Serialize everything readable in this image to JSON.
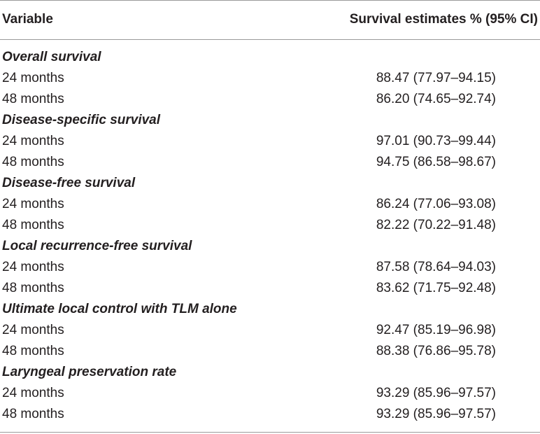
{
  "table": {
    "header": {
      "variable": "Variable",
      "estimate": "Survival estimates % (95% CI)"
    },
    "sections": [
      {
        "title": "Overall survival",
        "rows": [
          {
            "label": "24 months",
            "value": "88.47 (77.97–94.15)"
          },
          {
            "label": "48 months",
            "value": "86.20 (74.65–92.74)"
          }
        ]
      },
      {
        "title": "Disease-specific survival",
        "rows": [
          {
            "label": "24 months",
            "value": "97.01 (90.73–99.44)"
          },
          {
            "label": "48 months",
            "value": "94.75 (86.58–98.67)"
          }
        ]
      },
      {
        "title": "Disease-free survival",
        "rows": [
          {
            "label": "24 months",
            "value": "86.24 (77.06–93.08)"
          },
          {
            "label": "48 months",
            "value": "82.22 (70.22–91.48)"
          }
        ]
      },
      {
        "title": "Local recurrence-free survival",
        "rows": [
          {
            "label": "24 months",
            "value": "87.58 (78.64–94.03)"
          },
          {
            "label": "48 months",
            "value": "83.62 (71.75–92.48)"
          }
        ]
      },
      {
        "title": "Ultimate local control with TLM alone",
        "rows": [
          {
            "label": "24 months",
            "value": "92.47 (85.19–96.98)"
          },
          {
            "label": "48 months",
            "value": "88.38 (76.86–95.78)"
          }
        ]
      },
      {
        "title": "Laryngeal preservation rate",
        "rows": [
          {
            "label": "24 months",
            "value": "93.29 (85.96–97.57)"
          },
          {
            "label": "48 months",
            "value": "93.29 (85.96–97.57)"
          }
        ]
      }
    ]
  }
}
